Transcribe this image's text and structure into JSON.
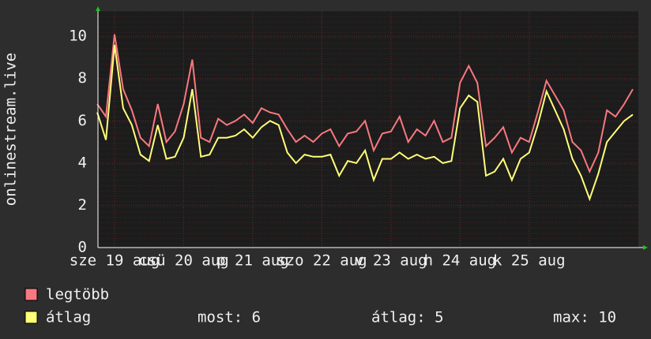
{
  "chart_data": {
    "type": "line",
    "y_label": "onlinestream.live",
    "x": [
      18.75,
      18.875,
      19,
      19.125,
      19.25,
      19.375,
      19.5,
      19.625,
      19.75,
      19.875,
      20,
      20.125,
      20.25,
      20.375,
      20.5,
      20.625,
      20.75,
      20.875,
      21,
      21.125,
      21.25,
      21.375,
      21.5,
      21.625,
      21.75,
      21.875,
      22,
      22.125,
      22.25,
      22.375,
      22.5,
      22.625,
      22.75,
      22.875,
      23,
      23.125,
      23.25,
      23.375,
      23.5,
      23.625,
      23.75,
      23.875,
      24,
      24.125,
      24.25,
      24.375,
      24.5,
      24.625,
      24.75,
      24.875,
      25,
      25.125,
      25.25,
      25.375,
      25.5,
      25.625,
      25.75,
      25.875,
      26,
      26.125,
      26.25,
      26.375,
      26.5
    ],
    "series": [
      {
        "name": "legtöbb",
        "color": "#f87880",
        "values": [
          6.8,
          6.2,
          10.1,
          7.5,
          6.5,
          5.2,
          4.8,
          6.8,
          5.0,
          5.5,
          6.8,
          8.9,
          5.2,
          5.0,
          6.1,
          5.8,
          6.0,
          6.3,
          5.9,
          6.6,
          6.4,
          6.3,
          5.6,
          5.0,
          5.3,
          5.0,
          5.4,
          5.6,
          4.8,
          5.4,
          5.5,
          6.0,
          4.6,
          5.4,
          5.5,
          6.2,
          5.0,
          5.6,
          5.3,
          6.0,
          5.0,
          5.2,
          7.8,
          8.6,
          7.8,
          4.8,
          5.2,
          5.7,
          4.5,
          5.2,
          5.0,
          6.4,
          7.9,
          7.2,
          6.5,
          5.0,
          4.6,
          3.6,
          4.5,
          6.5,
          6.2,
          6.8,
          7.5
        ]
      },
      {
        "name": "átlag",
        "color": "#ffff78",
        "values": [
          6.4,
          5.1,
          9.6,
          6.6,
          5.8,
          4.4,
          4.1,
          5.8,
          4.2,
          4.3,
          5.2,
          7.5,
          4.3,
          4.4,
          5.2,
          5.2,
          5.3,
          5.6,
          5.2,
          5.7,
          6.0,
          5.8,
          4.5,
          4.0,
          4.4,
          4.3,
          4.3,
          4.4,
          3.4,
          4.1,
          4.0,
          4.6,
          3.2,
          4.2,
          4.2,
          4.5,
          4.2,
          4.4,
          4.2,
          4.3,
          4.0,
          4.1,
          6.6,
          7.2,
          6.9,
          3.4,
          3.6,
          4.2,
          3.2,
          4.2,
          4.5,
          5.8,
          7.4,
          6.5,
          5.6,
          4.2,
          3.4,
          2.3,
          3.5,
          5.0,
          5.5,
          6.0,
          6.3
        ]
      }
    ],
    "xlim": [
      18.76,
      26.58
    ],
    "xticks": [
      {
        "value": 19,
        "label": "sze 19 aug"
      },
      {
        "value": 20,
        "label": "csü 20 aug"
      },
      {
        "value": 21,
        "label": "p 21 aug"
      },
      {
        "value": 22,
        "label": "szo 22 aug"
      },
      {
        "value": 23,
        "label": "v 23 aug"
      },
      {
        "value": 24,
        "label": "h 24 aug"
      },
      {
        "value": 25,
        "label": "k 25 aug"
      }
    ],
    "ylim": [
      0,
      11.2
    ],
    "yticks": [
      0,
      2,
      4,
      6,
      8,
      10
    ],
    "grid": true,
    "stats": [
      "most: 6",
      "átlag: 5",
      "max: 10"
    ]
  }
}
